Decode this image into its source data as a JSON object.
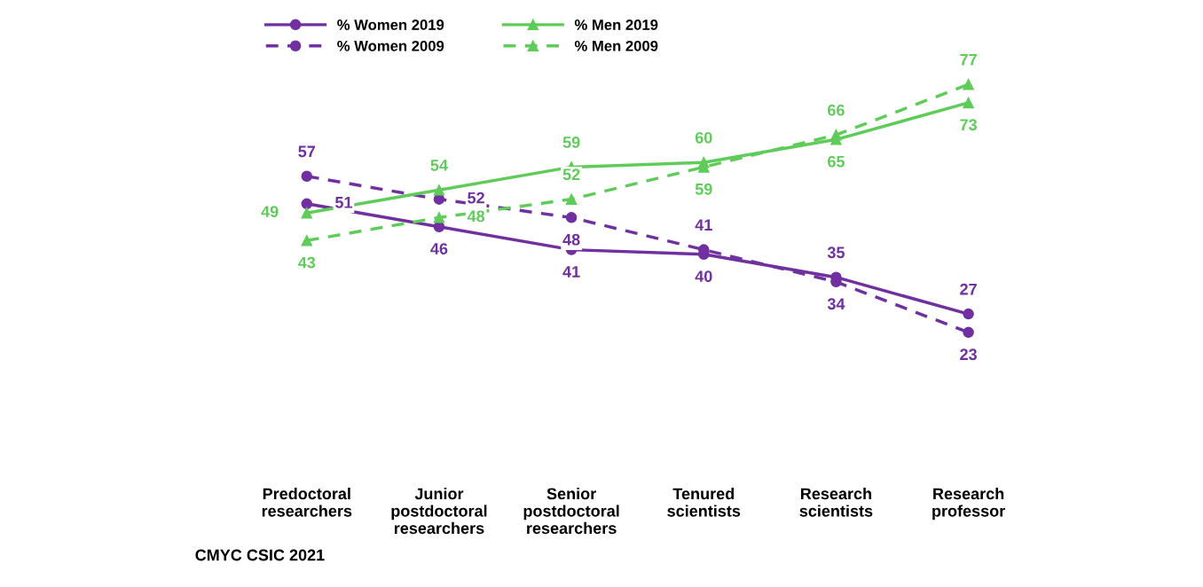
{
  "chart_data": {
    "type": "line",
    "categories": [
      "Predoctoral\nresearchers",
      "Junior\npostdoctoral\nresearchers",
      "Senior\npostdoctoral\nresearchers",
      "Tenured\nscientists",
      "Research\nscientists",
      "Research\nprofessor"
    ],
    "series": [
      {
        "name": "% Women 2019",
        "color": "#7030a0",
        "marker": "circle",
        "line_style": "solid",
        "values": [
          51,
          46,
          41,
          40,
          35,
          27
        ]
      },
      {
        "name": "% Women 2009",
        "color": "#7030a0",
        "marker": "circle",
        "line_style": "dashed",
        "values": [
          57,
          52,
          48,
          41,
          34,
          23
        ]
      },
      {
        "name": "% Men 2019",
        "color": "#5fcc5a",
        "marker": "triangle",
        "line_style": "solid",
        "values": [
          49,
          54,
          59,
          60,
          65,
          73
        ]
      },
      {
        "name": "% Men 2009",
        "color": "#5fcc5a",
        "marker": "triangle",
        "line_style": "dashed",
        "values": [
          43,
          48,
          52,
          59,
          66,
          77
        ]
      }
    ],
    "data_labels": true,
    "legend": "top left",
    "grid": false,
    "annotations": [
      "CMYC CSIC 2021"
    ]
  }
}
